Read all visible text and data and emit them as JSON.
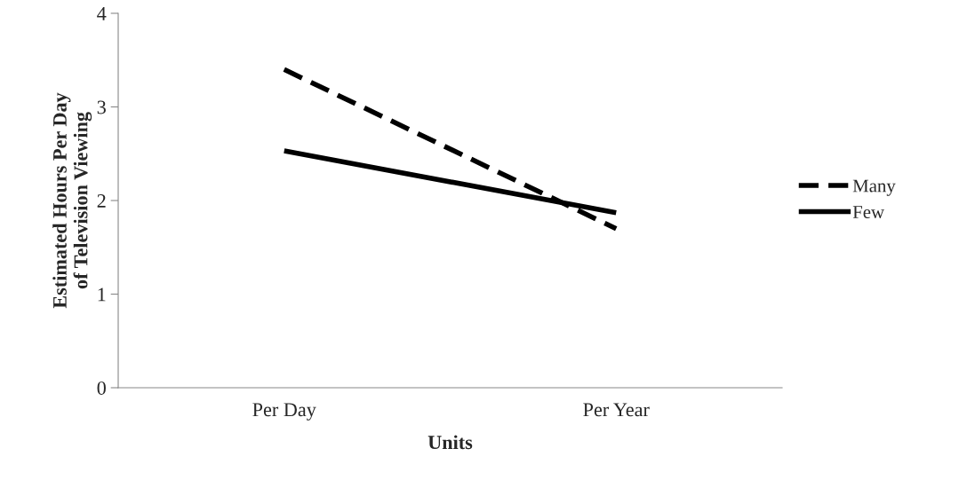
{
  "chart_data": {
    "type": "line",
    "xlabel": "Units",
    "ylabel": "Estimated Hours Per Day\nof Television Viewing",
    "categories": [
      "Per Day",
      "Per Year"
    ],
    "series": [
      {
        "name": "Many",
        "color": "#000000",
        "values": [
          3.4,
          1.7
        ],
        "line_style": "dashed"
      },
      {
        "name": "Few",
        "color": "#000000",
        "values": [
          2.53,
          1.87
        ],
        "line_style": "solid"
      }
    ],
    "ylim": [
      0,
      4
    ],
    "yticks": [
      0,
      1,
      2,
      3,
      4
    ],
    "grid": false,
    "legend": "right",
    "marker": "none"
  }
}
